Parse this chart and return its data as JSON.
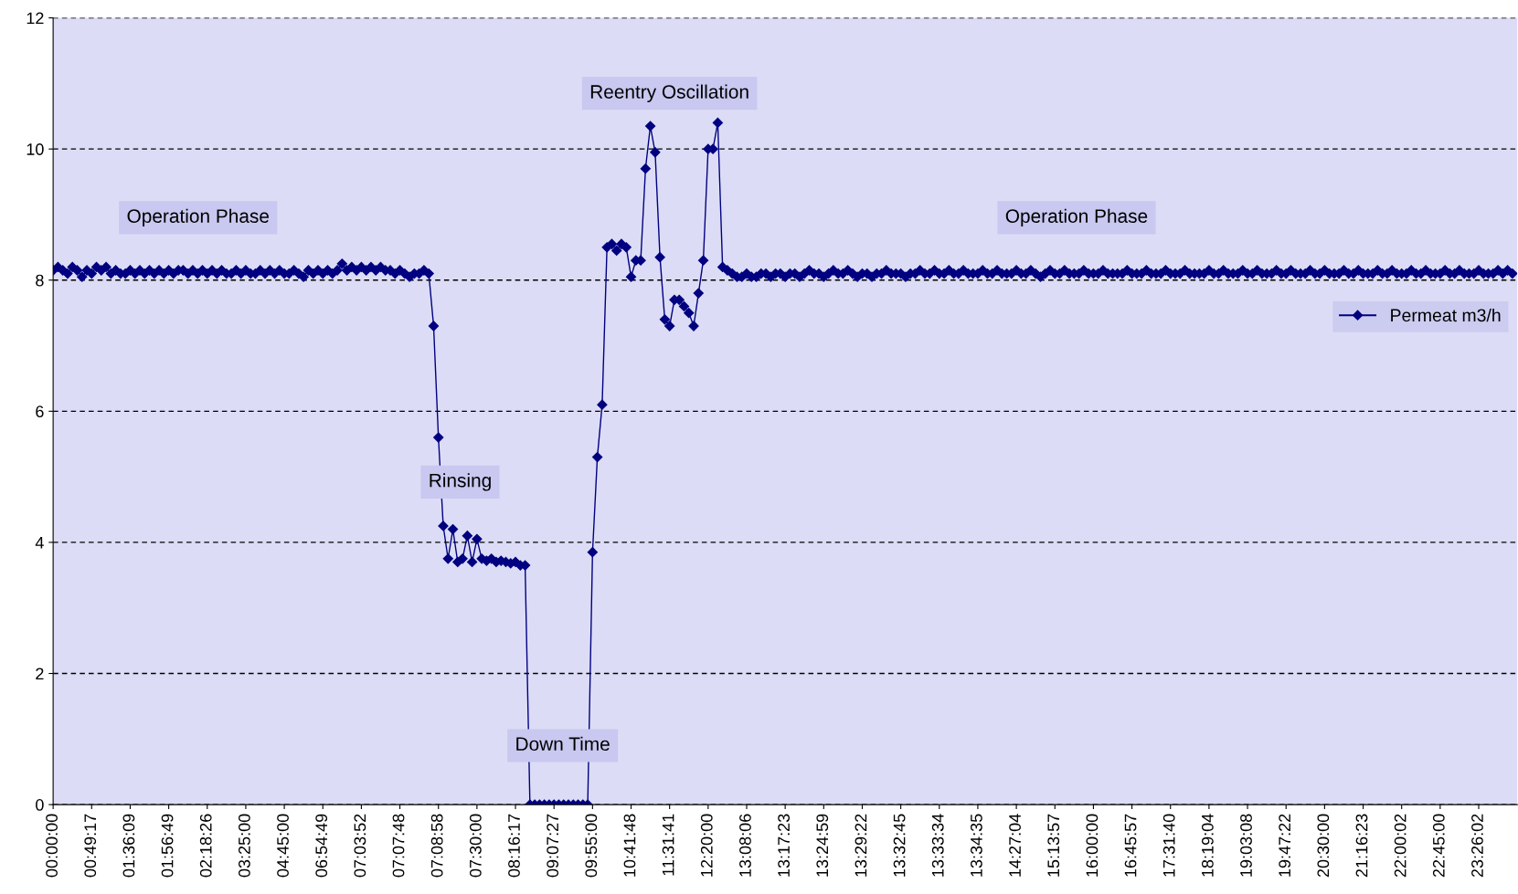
{
  "chart_data": {
    "type": "line",
    "categories": [
      "00:00:00",
      null,
      null,
      null,
      null,
      null,
      null,
      null,
      "00:49:17",
      null,
      null,
      null,
      null,
      null,
      null,
      null,
      "01:36:09",
      null,
      null,
      null,
      null,
      null,
      null,
      null,
      "01:56:49",
      null,
      null,
      null,
      null,
      null,
      null,
      null,
      "02:18:26",
      null,
      null,
      null,
      null,
      null,
      null,
      null,
      "03:25:00",
      null,
      null,
      null,
      null,
      null,
      null,
      null,
      "04:45:00",
      null,
      null,
      null,
      null,
      null,
      null,
      null,
      "06:54:49",
      null,
      null,
      null,
      null,
      null,
      null,
      null,
      "07:03:52",
      null,
      null,
      null,
      null,
      null,
      null,
      null,
      "07:07:48",
      null,
      null,
      null,
      null,
      null,
      null,
      null,
      "07:08:58",
      null,
      null,
      null,
      null,
      null,
      null,
      null,
      "07:30:00",
      null,
      null,
      null,
      null,
      null,
      null,
      null,
      "08:16:17",
      null,
      null,
      null,
      null,
      null,
      null,
      null,
      "09:07:27",
      null,
      null,
      null,
      null,
      null,
      null,
      null,
      "09:55:00",
      null,
      null,
      null,
      null,
      null,
      null,
      null,
      "10:41:48",
      null,
      null,
      null,
      null,
      null,
      null,
      null,
      "11:31:41",
      null,
      null,
      null,
      null,
      null,
      null,
      null,
      "12:20:00",
      null,
      null,
      null,
      null,
      null,
      null,
      null,
      "13:08:06",
      null,
      null,
      null,
      null,
      null,
      null,
      null,
      "13:17:23",
      null,
      null,
      null,
      null,
      null,
      null,
      null,
      "13:24:59",
      null,
      null,
      null,
      null,
      null,
      null,
      null,
      "13:29:22",
      null,
      null,
      null,
      null,
      null,
      null,
      null,
      "13:32:45",
      null,
      null,
      null,
      null,
      null,
      null,
      null,
      "13:33:34",
      null,
      null,
      null,
      null,
      null,
      null,
      null,
      "13:34:35",
      null,
      null,
      null,
      null,
      null,
      null,
      null,
      "14:27:04",
      null,
      null,
      null,
      null,
      null,
      null,
      null,
      "15:13:57",
      null,
      null,
      null,
      null,
      null,
      null,
      null,
      "16:00:00",
      null,
      null,
      null,
      null,
      null,
      null,
      null,
      "16:45:57",
      null,
      null,
      null,
      null,
      null,
      null,
      null,
      "17:31:40",
      null,
      null,
      null,
      null,
      null,
      null,
      null,
      "18:19:04",
      null,
      null,
      null,
      null,
      null,
      null,
      null,
      "19:03:08",
      null,
      null,
      null,
      null,
      null,
      null,
      null,
      "19:47:22",
      null,
      null,
      null,
      null,
      null,
      null,
      null,
      "20:30:00",
      null,
      null,
      null,
      null,
      null,
      null,
      null,
      "21:16:23",
      null,
      null,
      null,
      null,
      null,
      null,
      null,
      "22:00:02",
      null,
      null,
      null,
      null,
      null,
      null,
      null,
      "22:45:00",
      null,
      null,
      null,
      null,
      null,
      null,
      null,
      "23:26:02",
      null,
      null,
      null,
      null,
      null,
      null,
      null
    ],
    "series": [
      {
        "name": "Permeat m3/h",
        "color": "#000080",
        "values": [
          8.15,
          8.2,
          8.15,
          8.1,
          8.2,
          8.15,
          8.05,
          8.15,
          8.1,
          8.2,
          8.15,
          8.2,
          8.1,
          8.15,
          8.1,
          8.1,
          8.15,
          8.1,
          8.15,
          8.1,
          8.15,
          8.1,
          8.15,
          8.1,
          8.15,
          8.1,
          8.15,
          8.15,
          8.1,
          8.15,
          8.1,
          8.15,
          8.1,
          8.15,
          8.1,
          8.15,
          8.1,
          8.1,
          8.15,
          8.1,
          8.15,
          8.1,
          8.1,
          8.15,
          8.1,
          8.15,
          8.1,
          8.15,
          8.1,
          8.1,
          8.15,
          8.1,
          8.05,
          8.15,
          8.1,
          8.15,
          8.1,
          8.15,
          8.1,
          8.15,
          8.25,
          8.15,
          8.2,
          8.15,
          8.2,
          8.15,
          8.2,
          8.15,
          8.2,
          8.15,
          8.15,
          8.1,
          8.15,
          8.1,
          8.05,
          8.1,
          8.1,
          8.15,
          8.1,
          7.3,
          5.6,
          4.25,
          3.75,
          4.2,
          3.7,
          3.75,
          4.1,
          3.7,
          4.05,
          3.75,
          3.72,
          3.75,
          3.7,
          3.72,
          3.7,
          3.68,
          3.7,
          3.65,
          3.65,
          0,
          0,
          0,
          0,
          0,
          0,
          0,
          0,
          0,
          0,
          0,
          0,
          0,
          3.85,
          5.3,
          6.1,
          8.5,
          8.55,
          8.45,
          8.55,
          8.5,
          8.05,
          8.3,
          8.3,
          9.7,
          10.35,
          9.95,
          8.35,
          7.4,
          7.3,
          7.7,
          7.7,
          7.6,
          7.5,
          7.3,
          7.8,
          8.3,
          10.0,
          10.0,
          10.4,
          8.2,
          8.15,
          8.1,
          8.05,
          8.05,
          8.1,
          8.05,
          8.05,
          8.1,
          8.1,
          8.05,
          8.1,
          8.1,
          8.05,
          8.1,
          8.1,
          8.05,
          8.1,
          8.15,
          8.1,
          8.1,
          8.05,
          8.1,
          8.15,
          8.1,
          8.1,
          8.15,
          8.1,
          8.05,
          8.1,
          8.1,
          8.05,
          8.1,
          8.1,
          8.15,
          8.1,
          8.1,
          8.1,
          8.05,
          8.1,
          8.1,
          8.15,
          8.1,
          8.1,
          8.15,
          8.1,
          8.1,
          8.15,
          8.1,
          8.1,
          8.15,
          8.1,
          8.1,
          8.1,
          8.15,
          8.1,
          8.1,
          8.15,
          8.1,
          8.1,
          8.1,
          8.15,
          8.1,
          8.1,
          8.15,
          8.1,
          8.05,
          8.1,
          8.15,
          8.1,
          8.1,
          8.15,
          8.1,
          8.1,
          8.1,
          8.15,
          8.1,
          8.1,
          8.1,
          8.15,
          8.1,
          8.1,
          8.1,
          8.1,
          8.15,
          8.1,
          8.1,
          8.1,
          8.15,
          8.1,
          8.1,
          8.1,
          8.15,
          8.1,
          8.1,
          8.1,
          8.15,
          8.1,
          8.1,
          8.1,
          8.1,
          8.15,
          8.1,
          8.1,
          8.15,
          8.1,
          8.1,
          8.1,
          8.15,
          8.1,
          8.1,
          8.15,
          8.1,
          8.1,
          8.1,
          8.15,
          8.1,
          8.1,
          8.15,
          8.1,
          8.1,
          8.1,
          8.15,
          8.1,
          8.1,
          8.15,
          8.1,
          8.1,
          8.1,
          8.15,
          8.1,
          8.1,
          8.15,
          8.1,
          8.1,
          8.1,
          8.15,
          8.1,
          8.1,
          8.15,
          8.1,
          8.1,
          8.1,
          8.15,
          8.1,
          8.1,
          8.15,
          8.1,
          8.1,
          8.1,
          8.15,
          8.1,
          8.1,
          8.15,
          8.1,
          8.1,
          8.1,
          8.15,
          8.1,
          8.1,
          8.1,
          8.15,
          8.1,
          8.15,
          8.1
        ]
      }
    ],
    "ylim": [
      0,
      12
    ],
    "yticks": [
      0,
      2,
      4,
      6,
      8,
      10,
      12
    ],
    "grid": "y",
    "legend": "right",
    "marker": "diamond",
    "line_style": "solid",
    "annotations": [
      "Operation Phase",
      "Rinsing",
      "Down Time",
      "Reentry Oscillation",
      "Operation Phase"
    ]
  }
}
